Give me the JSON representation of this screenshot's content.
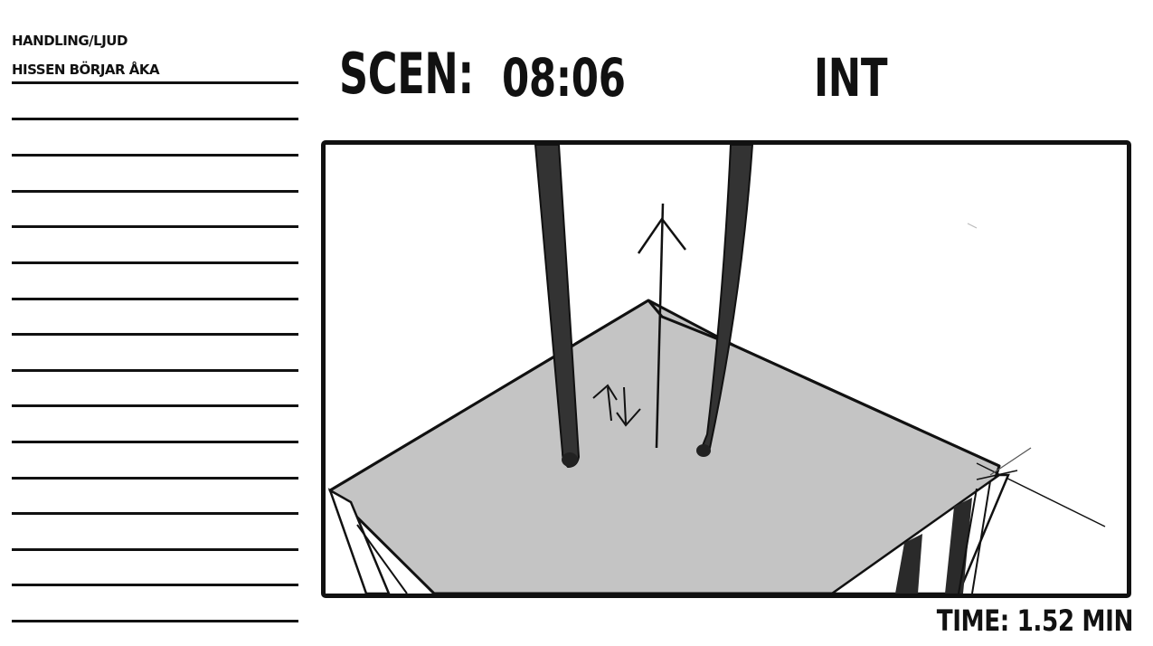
{
  "handling": {
    "label": "HANDLING/LJUD",
    "text": "HISSEN BÖRJAR ÅKA"
  },
  "scene": {
    "label": "SCEN:",
    "number": "08:06",
    "location": "INT"
  },
  "time": {
    "label": "TIME: 1.52 MIN"
  },
  "colors": {
    "ink": "#111111",
    "floor": "#c4c4c4",
    "dark": "#2a2a2a"
  }
}
